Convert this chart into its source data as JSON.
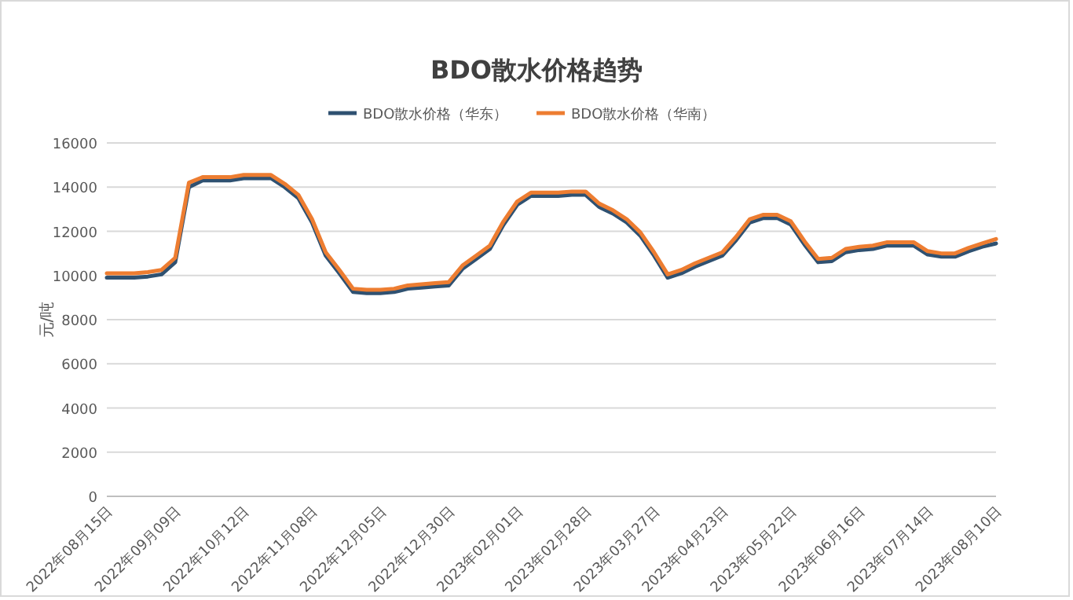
{
  "chart_data": {
    "type": "line",
    "title": "BDO散水价格趋势",
    "ylabel": "元/吨",
    "categories": [
      "2022年08月15日",
      null,
      null,
      null,
      null,
      "2022年09月09日",
      null,
      null,
      null,
      null,
      "2022年10月12日",
      null,
      null,
      null,
      null,
      "2022年11月08日",
      null,
      null,
      null,
      null,
      "2022年12月05日",
      null,
      null,
      null,
      null,
      "2022年12月30日",
      null,
      null,
      null,
      null,
      "2023年02月01日",
      null,
      null,
      null,
      null,
      "2023年02月28日",
      null,
      null,
      null,
      null,
      "2023年03月27日",
      null,
      null,
      null,
      null,
      "2023年04月23日",
      null,
      null,
      null,
      null,
      "2023年05月22日",
      null,
      null,
      null,
      null,
      "2023年06月16日",
      null,
      null,
      null,
      null,
      "2023年07月14日",
      null,
      null,
      null,
      null,
      "2023年08月10日"
    ],
    "series": [
      {
        "name": "BDO散水价格（华东）",
        "color": "#2f5171",
        "values": [
          9900,
          9900,
          9900,
          9950,
          10050,
          10600,
          14000,
          14300,
          14300,
          14300,
          14400,
          14400,
          14400,
          14000,
          13500,
          12400,
          10900,
          10100,
          9250,
          9200,
          9200,
          9250,
          9400,
          9450,
          9500,
          9550,
          10300,
          10750,
          11200,
          12300,
          13200,
          13600,
          13600,
          13600,
          13650,
          13650,
          13100,
          12800,
          12400,
          11800,
          10900,
          9900,
          10100,
          10400,
          10650,
          10900,
          11600,
          12400,
          12600,
          12600,
          12300,
          11400,
          10600,
          10650,
          11050,
          11150,
          11200,
          11350,
          11350,
          11350,
          10950,
          10850,
          10850,
          11100,
          11300,
          11450
        ]
      },
      {
        "name": "BDO散水价格（华南）",
        "color": "#ed7d31",
        "values": [
          10100,
          10100,
          10100,
          10150,
          10250,
          10800,
          14200,
          14450,
          14450,
          14450,
          14550,
          14550,
          14550,
          14150,
          13650,
          12550,
          11050,
          10250,
          9400,
          9350,
          9350,
          9400,
          9550,
          9600,
          9650,
          9700,
          10450,
          10900,
          11350,
          12450,
          13350,
          13750,
          13750,
          13750,
          13800,
          13800,
          13250,
          12950,
          12550,
          11950,
          11050,
          10050,
          10250,
          10550,
          10800,
          11050,
          11750,
          12550,
          12750,
          12750,
          12450,
          11550,
          10750,
          10800,
          11200,
          11300,
          11350,
          11500,
          11500,
          11500,
          11100,
          11000,
          11000,
          11250,
          11450,
          11650
        ]
      }
    ],
    "ylim": [
      0,
      16000
    ],
    "yticks": [
      0,
      2000,
      4000,
      6000,
      8000,
      10000,
      12000,
      14000,
      16000
    ],
    "grid": "y",
    "legend": "top",
    "marker": "none",
    "line_style": "solid"
  }
}
